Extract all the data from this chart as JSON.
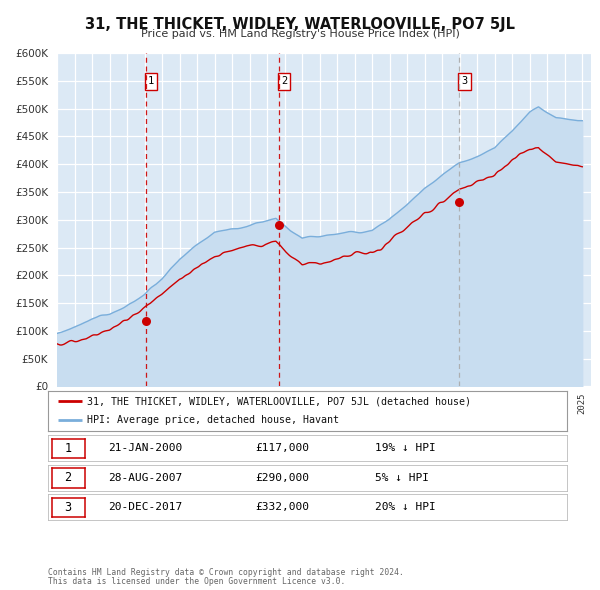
{
  "title": "31, THE THICKET, WIDLEY, WATERLOOVILLE, PO7 5JL",
  "subtitle": "Price paid vs. HM Land Registry's House Price Index (HPI)",
  "ylim": [
    0,
    600000
  ],
  "yticks": [
    0,
    50000,
    100000,
    150000,
    200000,
    250000,
    300000,
    350000,
    400000,
    450000,
    500000,
    550000,
    600000
  ],
  "xlim_start": 1995.0,
  "xlim_end": 2025.5,
  "background_color": "#ffffff",
  "plot_bg_color": "#dce9f5",
  "grid_color": "#ffffff",
  "sale_color": "#cc0000",
  "hpi_color": "#7aaedb",
  "hpi_fill_color": "#c8ddf0",
  "sale_markers": [
    {
      "year": 2000.06,
      "value": 117000,
      "label": "1"
    },
    {
      "year": 2007.66,
      "value": 290000,
      "label": "2"
    },
    {
      "year": 2017.97,
      "value": 332000,
      "label": "3"
    }
  ],
  "vline_colors": [
    "#cc0000",
    "#cc0000",
    "#aaaaaa"
  ],
  "legend_sale_label": "31, THE THICKET, WIDLEY, WATERLOOVILLE, PO7 5JL (detached house)",
  "legend_hpi_label": "HPI: Average price, detached house, Havant",
  "table_rows": [
    {
      "num": "1",
      "date": "21-JAN-2000",
      "price": "£117,000",
      "pct": "19% ↓ HPI"
    },
    {
      "num": "2",
      "date": "28-AUG-2007",
      "price": "£290,000",
      "pct": "5% ↓ HPI"
    },
    {
      "num": "3",
      "date": "20-DEC-2017",
      "price": "£332,000",
      "pct": "20% ↓ HPI"
    }
  ],
  "footer1": "Contains HM Land Registry data © Crown copyright and database right 2024.",
  "footer2": "This data is licensed under the Open Government Licence v3.0."
}
